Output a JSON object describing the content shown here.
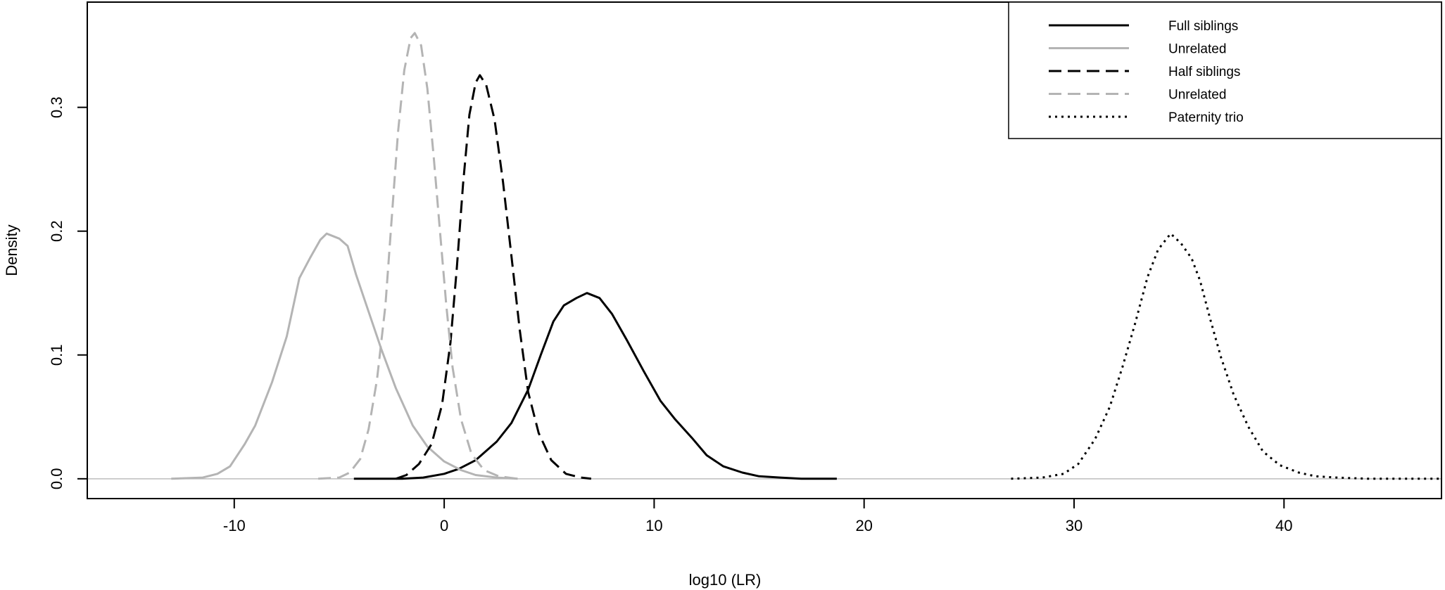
{
  "chart_data": {
    "type": "line",
    "title": "",
    "xlabel": "log10 (LR)",
    "ylabel": "Density",
    "xlim": [
      -17,
      47.5
    ],
    "ylim": [
      -0.016,
      0.385
    ],
    "x_ticks": [
      -10,
      0,
      10,
      20,
      30,
      40
    ],
    "y_ticks": [
      0.0,
      0.1,
      0.2,
      0.3
    ],
    "x_tick_labels": [
      "-10",
      "0",
      "10",
      "20",
      "30",
      "40"
    ],
    "y_tick_labels": [
      "0.0",
      "0.1",
      "0.2",
      "0.3"
    ],
    "grid": false,
    "legend_position": "top-right",
    "baseline": {
      "y": 0,
      "color": "#bebebe"
    },
    "series": [
      {
        "name": "Full siblings",
        "color": "#000000",
        "dash": "solid",
        "points": [
          [
            -4.3,
            0
          ],
          [
            -2,
            0
          ],
          [
            -1,
            0.001
          ],
          [
            0,
            0.004
          ],
          [
            0.7,
            0.008
          ],
          [
            1.5,
            0.015
          ],
          [
            2.5,
            0.03
          ],
          [
            3.2,
            0.045
          ],
          [
            4,
            0.072
          ],
          [
            4.6,
            0.1
          ],
          [
            5.2,
            0.127
          ],
          [
            5.7,
            0.14
          ],
          [
            6.3,
            0.146
          ],
          [
            6.8,
            0.15
          ],
          [
            7.4,
            0.146
          ],
          [
            8,
            0.133
          ],
          [
            8.7,
            0.112
          ],
          [
            9.5,
            0.087
          ],
          [
            10.3,
            0.063
          ],
          [
            11,
            0.048
          ],
          [
            11.8,
            0.033
          ],
          [
            12.5,
            0.019
          ],
          [
            13.3,
            0.01
          ],
          [
            14.2,
            0.005
          ],
          [
            15,
            0.002
          ],
          [
            16,
            0.001
          ],
          [
            17,
            0
          ],
          [
            18.7,
            0
          ]
        ]
      },
      {
        "name": "Unrelated",
        "color": "#b4b4b4",
        "dash": "solid",
        "points": [
          [
            -13,
            0
          ],
          [
            -11.5,
            0.001
          ],
          [
            -10.8,
            0.004
          ],
          [
            -10.2,
            0.01
          ],
          [
            -9.5,
            0.028
          ],
          [
            -9,
            0.043
          ],
          [
            -8.2,
            0.078
          ],
          [
            -7.5,
            0.115
          ],
          [
            -6.9,
            0.162
          ],
          [
            -6.4,
            0.178
          ],
          [
            -5.9,
            0.193
          ],
          [
            -5.6,
            0.198
          ],
          [
            -5,
            0.194
          ],
          [
            -4.6,
            0.188
          ],
          [
            -4.2,
            0.165
          ],
          [
            -3.7,
            0.14
          ],
          [
            -3,
            0.105
          ],
          [
            -2.3,
            0.073
          ],
          [
            -1.5,
            0.043
          ],
          [
            -0.8,
            0.026
          ],
          [
            0,
            0.014
          ],
          [
            0.8,
            0.007
          ],
          [
            1.5,
            0.003
          ],
          [
            2.5,
            0.001
          ],
          [
            3.5,
            0
          ]
        ]
      },
      {
        "name": "Half siblings",
        "color": "#000000",
        "dash": "longdash",
        "points": [
          [
            -2.3,
            0
          ],
          [
            -1.8,
            0.003
          ],
          [
            -1.2,
            0.012
          ],
          [
            -0.6,
            0.028
          ],
          [
            -0.1,
            0.06
          ],
          [
            0.3,
            0.11
          ],
          [
            0.6,
            0.17
          ],
          [
            0.9,
            0.238
          ],
          [
            1.2,
            0.294
          ],
          [
            1.5,
            0.32
          ],
          [
            1.7,
            0.326
          ],
          [
            2,
            0.318
          ],
          [
            2.4,
            0.29
          ],
          [
            2.8,
            0.24
          ],
          [
            3.2,
            0.18
          ],
          [
            3.6,
            0.12
          ],
          [
            4,
            0.07
          ],
          [
            4.5,
            0.037
          ],
          [
            5.1,
            0.015
          ],
          [
            5.8,
            0.004
          ],
          [
            6.5,
            0.001
          ],
          [
            7,
            0
          ]
        ]
      },
      {
        "name": "Unrelated",
        "color": "#b4b4b4",
        "dash": "longdash",
        "points": [
          [
            -6,
            0
          ],
          [
            -5,
            0.001
          ],
          [
            -4.5,
            0.005
          ],
          [
            -4,
            0.016
          ],
          [
            -3.6,
            0.04
          ],
          [
            -3.2,
            0.08
          ],
          [
            -2.8,
            0.14
          ],
          [
            -2.5,
            0.21
          ],
          [
            -2.2,
            0.28
          ],
          [
            -1.9,
            0.33
          ],
          [
            -1.6,
            0.356
          ],
          [
            -1.4,
            0.36
          ],
          [
            -1.1,
            0.35
          ],
          [
            -0.8,
            0.315
          ],
          [
            -0.5,
            0.26
          ],
          [
            -0.2,
            0.2
          ],
          [
            0.1,
            0.14
          ],
          [
            0.4,
            0.09
          ],
          [
            0.8,
            0.048
          ],
          [
            1.3,
            0.02
          ],
          [
            1.9,
            0.007
          ],
          [
            2.6,
            0.002
          ],
          [
            3.5,
            0
          ]
        ]
      },
      {
        "name": "Paternity trio",
        "color": "#000000",
        "dash": "dotted",
        "points": [
          [
            27,
            0
          ],
          [
            28.5,
            0.001
          ],
          [
            29.5,
            0.004
          ],
          [
            30.2,
            0.012
          ],
          [
            31,
            0.032
          ],
          [
            31.7,
            0.058
          ],
          [
            32.3,
            0.09
          ],
          [
            32.9,
            0.125
          ],
          [
            33.5,
            0.163
          ],
          [
            34,
            0.185
          ],
          [
            34.6,
            0.198
          ],
          [
            35.1,
            0.19
          ],
          [
            35.6,
            0.178
          ],
          [
            36,
            0.16
          ],
          [
            36.5,
            0.128
          ],
          [
            37,
            0.098
          ],
          [
            37.6,
            0.068
          ],
          [
            38.3,
            0.042
          ],
          [
            39,
            0.022
          ],
          [
            39.8,
            0.011
          ],
          [
            40.7,
            0.005
          ],
          [
            41.5,
            0.002
          ],
          [
            42.5,
            0.001
          ],
          [
            44,
            0
          ],
          [
            47.5,
            0
          ]
        ]
      }
    ]
  }
}
